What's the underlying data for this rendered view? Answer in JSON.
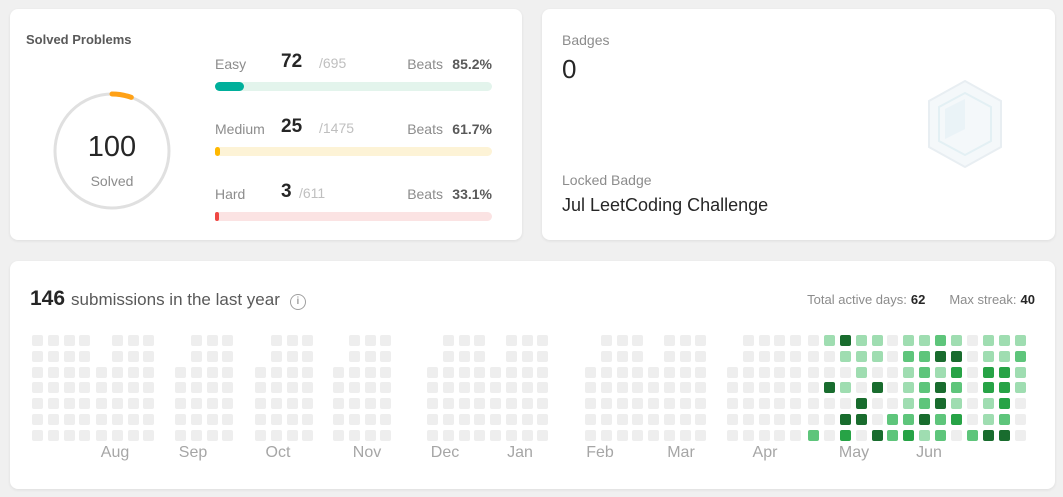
{
  "solved": {
    "title": "Solved Problems",
    "total": "100",
    "total_label": "Solved",
    "progress_fraction": 0.055,
    "difficulties": [
      {
        "name": "Easy",
        "count": "72",
        "total": "/695",
        "beats_label": "Beats",
        "beats": "85.2%",
        "fraction": 0.1036,
        "color": "#00af9b",
        "track": "#e3f4ec"
      },
      {
        "name": "Medium",
        "count": "25",
        "total": "/1475",
        "beats_label": "Beats",
        "beats": "61.7%",
        "fraction": 0.017,
        "color": "#ffb800",
        "track": "#fdf3d6"
      },
      {
        "name": "Hard",
        "count": "3",
        "total": "/611",
        "beats_label": "Beats",
        "beats": "33.1%",
        "fraction": 0.0049,
        "color": "#ef4743",
        "track": "#fbe3e3"
      }
    ]
  },
  "badges": {
    "label": "Badges",
    "count": "0",
    "locked_label": "Locked Badge",
    "locked_name": "Jul LeetCoding Challenge"
  },
  "submissions": {
    "count": "146",
    "label": "submissions in the last year",
    "info_icon": "info-icon",
    "active_days_label": "Total active days:",
    "active_days": "62",
    "max_streak_label": "Max streak:",
    "max_streak": "40",
    "months": [
      "Aug",
      "Sep",
      "Oct",
      "Nov",
      "Dec",
      "Jan",
      "Feb",
      "Mar",
      "Apr",
      "May",
      "Jun"
    ]
  },
  "colors": {
    "empty_cell": "#eeeeee",
    "level1": "#9fddb1",
    "level2": "#5ec57b",
    "level3": "#27a346",
    "level4": "#196c2e"
  }
}
